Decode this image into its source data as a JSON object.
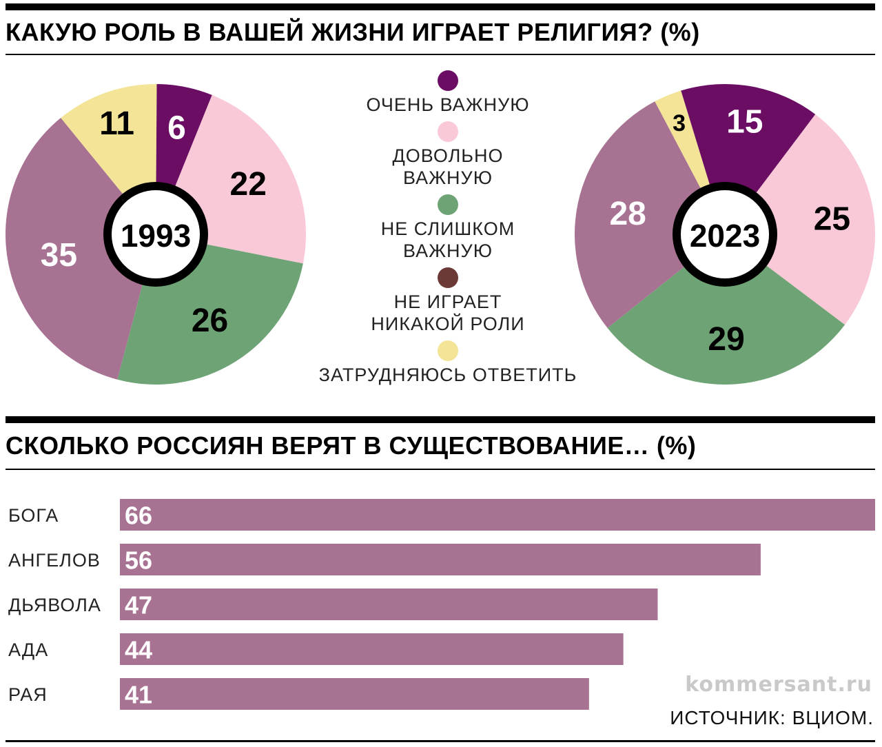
{
  "chart_data": [
    {
      "type": "pie",
      "title": "КАКУЮ РОЛЬ В ВАШЕЙ ЖИЗНИ ИГРАЕТ РЕЛИГИЯ? (%)",
      "legend": [
        {
          "label": "ОЧЕНЬ ВАЖНУЮ",
          "color": "#6b0d63"
        },
        {
          "label": "ДОВОЛЬНО\nВАЖНУЮ",
          "color": "#f9c9d8"
        },
        {
          "label": "НЕ СЛИШКОМ\nВАЖНУЮ",
          "color": "#6ea475"
        },
        {
          "label": "НЕ ИГРАЕТ\nНИКАКОЙ РОЛИ",
          "color": "#6b3a37"
        },
        {
          "label": "ЗАТРУДНЯЮСЬ ОТВЕТИТЬ",
          "color": "#f3e497"
        }
      ],
      "legend_position": "center",
      "pies": [
        {
          "center_label": "1993",
          "slices": [
            {
              "category": "ДОВОЛЬНО ВАЖНУЮ",
              "value": 22,
              "color": "#f9c9d8",
              "label_color": "#000000"
            },
            {
              "category": "НЕ СЛИШКОМ ВАЖНУЮ",
              "value": 26,
              "color": "#6ea475",
              "label_color": "#000000"
            },
            {
              "category": "НЕ ИГРАЕТ НИКАКОЙ РОЛИ",
              "value": 35,
              "color": "#a87393",
              "label_color": "#ffffff"
            },
            {
              "category": "ЗАТРУДНЯЮСЬ ОТВЕТИТЬ",
              "value": 11,
              "color": "#f3e497",
              "label_color": "#000000"
            },
            {
              "category": "ОЧЕНЬ ВАЖНУЮ",
              "value": 6,
              "color": "#6b0d63",
              "label_color": "#ffffff"
            }
          ]
        },
        {
          "center_label": "2023",
          "slices": [
            {
              "category": "ДОВОЛЬНО ВАЖНУЮ",
              "value": 25,
              "color": "#f9c9d8",
              "label_color": "#000000"
            },
            {
              "category": "НЕ СЛИШКОМ ВАЖНУЮ",
              "value": 29,
              "color": "#6ea475",
              "label_color": "#000000"
            },
            {
              "category": "НЕ ИГРАЕТ НИКАКОЙ РОЛИ",
              "value": 28,
              "color": "#a87393",
              "label_color": "#ffffff"
            },
            {
              "category": "ЗАТРУДНЯЮСЬ ОТВЕТИТЬ",
              "value": 3,
              "color": "#f3e497",
              "label_color": "#000000"
            },
            {
              "category": "ОЧЕНЬ ВАЖНУЮ",
              "value": 15,
              "color": "#6b0d63",
              "label_color": "#ffffff"
            }
          ]
        }
      ]
    },
    {
      "type": "bar",
      "orientation": "horizontal",
      "title": "СКОЛЬКО РОССИЯН ВЕРЯТ В СУЩЕСТВОВАНИЕ… (%)",
      "categories": [
        "БОГА",
        "АНГЕЛОВ",
        "ДЬЯВОЛА",
        "АДА",
        "РАЯ"
      ],
      "values": [
        66,
        56,
        47,
        44,
        41
      ],
      "bar_color": "#a87393",
      "value_label_color": "#ffffff"
    }
  ],
  "watermark": "kommersant.ru",
  "source": "ИСТОЧНИК: ВЦИОМ."
}
